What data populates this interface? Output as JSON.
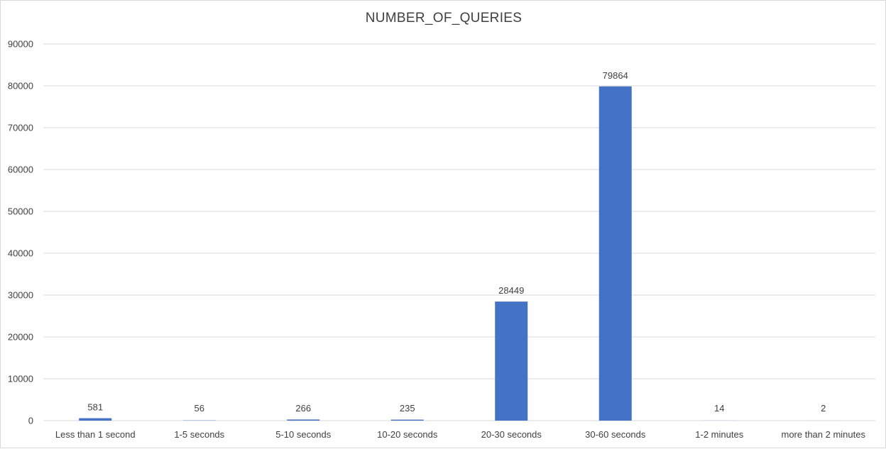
{
  "chart_data": {
    "type": "bar",
    "title": "NUMBER_OF_QUERIES",
    "xlabel": "",
    "ylabel": "",
    "categories": [
      "Less than 1 second",
      "1-5 seconds",
      "5-10 seconds",
      "10-20 seconds",
      "20-30 seconds",
      "30-60 seconds",
      "1-2 minutes",
      "more than 2 minutes"
    ],
    "values": [
      581,
      56,
      266,
      235,
      28449,
      79864,
      14,
      2
    ],
    "data_labels": [
      "581",
      "56",
      "266",
      "235",
      "28449",
      "79864",
      "14",
      "2"
    ],
    "ylim": [
      0,
      90000
    ],
    "yticks": [
      0,
      10000,
      20000,
      30000,
      40000,
      50000,
      60000,
      70000,
      80000,
      90000
    ],
    "ytick_labels": [
      "0",
      "10000",
      "20000",
      "30000",
      "40000",
      "50000",
      "60000",
      "70000",
      "80000",
      "90000"
    ],
    "grid": true,
    "legend": "none",
    "colors": {
      "bar": "#4472C4",
      "grid": "#d9d9d9",
      "text": "#404040",
      "axis": "#d9d9d9"
    }
  }
}
